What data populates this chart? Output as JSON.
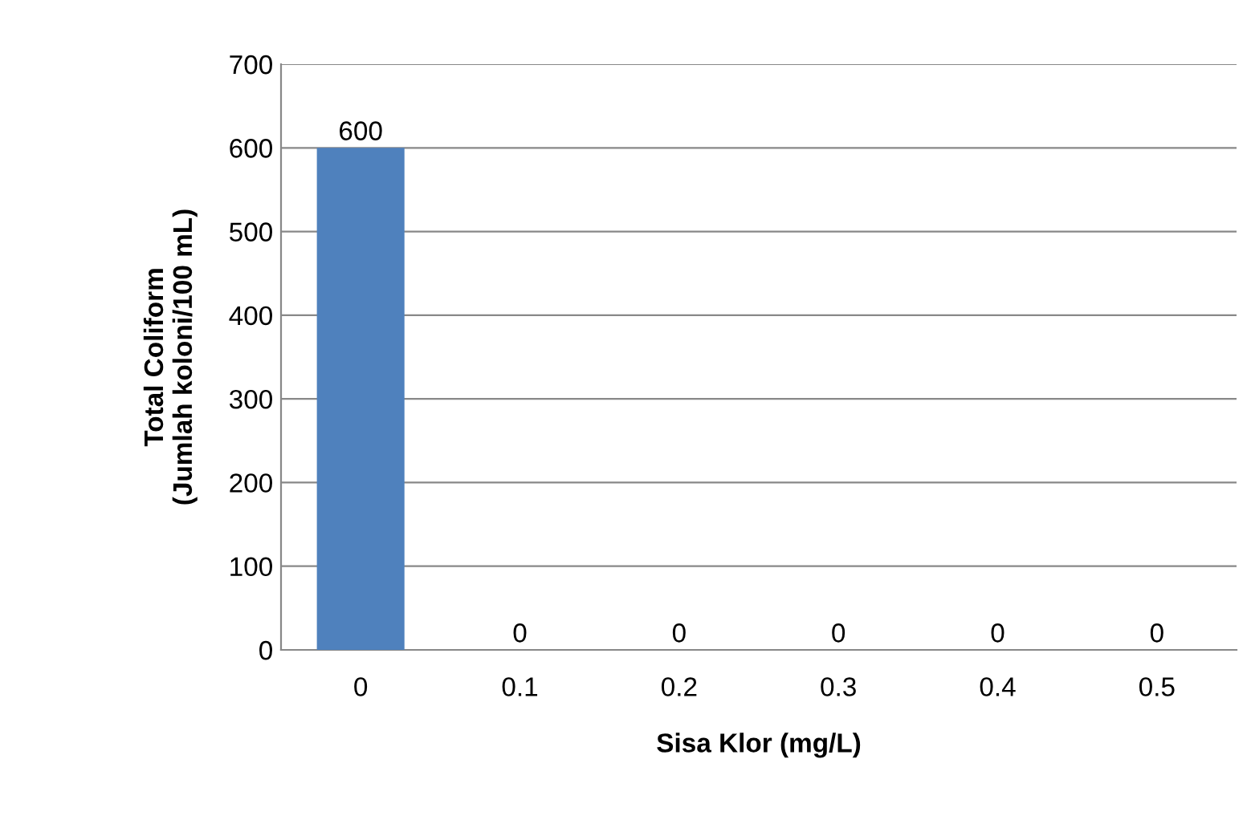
{
  "chart_data": {
    "type": "bar",
    "xlabel": "Sisa Klor (mg/L)",
    "ylabel": "Total Coliform\n(Jumlah koloni/100 mL)",
    "categories": [
      "0",
      "0.1",
      "0.2",
      "0.3",
      "0.4",
      "0.5"
    ],
    "values": [
      600,
      0,
      0,
      0,
      0,
      0
    ],
    "color": "#4f81bd",
    "ylim": [
      0,
      700
    ],
    "yticks": [
      0,
      100,
      200,
      300,
      400,
      500,
      600,
      700
    ],
    "grid": "y",
    "data_labels": true,
    "legend": false
  }
}
